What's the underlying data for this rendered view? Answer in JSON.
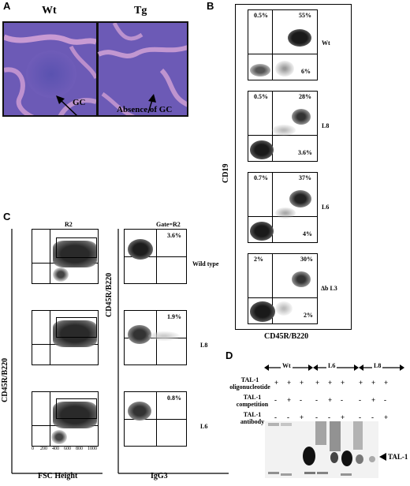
{
  "panel_a": {
    "label": "A",
    "wt_label": "Wt",
    "tg_label": "Tg",
    "gc_label": "GC",
    "absence_label": "Absence of GC"
  },
  "panel_b": {
    "label": "B",
    "ylabel": "CD19",
    "xlabel": "CD45R/B220",
    "plots": [
      {
        "name": "Wt",
        "ul": "0.5%",
        "ur": "55%",
        "lr": "6%"
      },
      {
        "name": "L8",
        "ul": "0.5%",
        "ur": "28%",
        "lr": "3.6%"
      },
      {
        "name": "L6",
        "ul": "0.7%",
        "ur": "37%",
        "lr": "4%"
      },
      {
        "name": "Δb L3",
        "ul": "2%",
        "ur": "30%",
        "lr": "2%"
      }
    ]
  },
  "panel_c": {
    "label": "C",
    "left_title": "R2",
    "right_title": "Gate=R2",
    "ylabel": "CD45R/B220",
    "xlabel_left": "FSC Height",
    "xlabel_right": "IgG3",
    "rows": [
      {
        "name": "Wild type",
        "pct": "3.6%"
      },
      {
        "name": "L8",
        "pct": "1.9%"
      },
      {
        "name": "L6",
        "pct": "0.8%"
      }
    ],
    "fsc_ticks": [
      "0",
      "200",
      "400",
      "600",
      "800",
      "1000"
    ]
  },
  "panel_d": {
    "label": "D",
    "groups": [
      "Wt",
      "L6",
      "L8"
    ],
    "row1_label": "TAL-1 oligonucleotide",
    "row2_label": "TAL-1 competition",
    "row3_label": "TAL-1 antibody",
    "row1": [
      "+",
      "+",
      "+",
      "+",
      "+",
      "+",
      "+",
      "+",
      "+"
    ],
    "row2": [
      "-",
      "+",
      "-",
      "-",
      "+",
      "-",
      "-",
      "+",
      "-"
    ],
    "row3": [
      "-",
      "-",
      "+",
      "-",
      "-",
      "+",
      "-",
      "-",
      "+"
    ],
    "band_label": "TAL-1"
  }
}
